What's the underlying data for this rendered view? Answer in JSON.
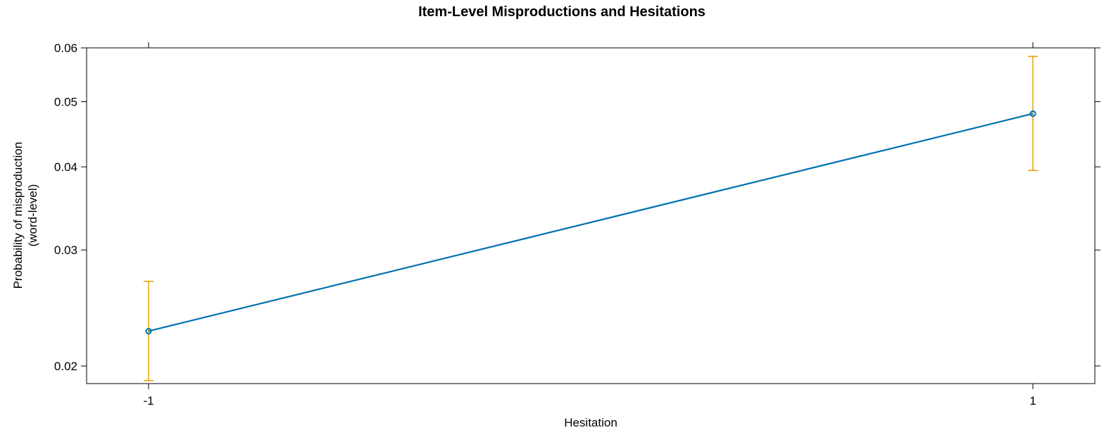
{
  "chart_data": {
    "type": "line",
    "title": "Item-Level Misproductions and Hesitations",
    "xlabel": "Hesitation",
    "ylabel_lines": [
      "Probability of misproduction",
      "(word-level)"
    ],
    "x_ticks": [
      "-1",
      "1"
    ],
    "y_ticks": [
      0.02,
      0.03,
      0.04,
      0.05,
      0.06
    ],
    "y_tick_labels": [
      "0.02",
      "0.03",
      "0.04",
      "0.05",
      "0.06"
    ],
    "y_scale": "logit",
    "ylim": [
      0.0188,
      0.06
    ],
    "grid": false,
    "series": [
      {
        "x": [
          -1,
          1
        ],
        "y": [
          0.0226,
          0.048
        ],
        "lower": [
          0.019,
          0.0395
        ],
        "upper": [
          0.0269,
          0.0583
        ],
        "line_color": "#0072B2",
        "error_color": "#E69F00"
      }
    ]
  }
}
